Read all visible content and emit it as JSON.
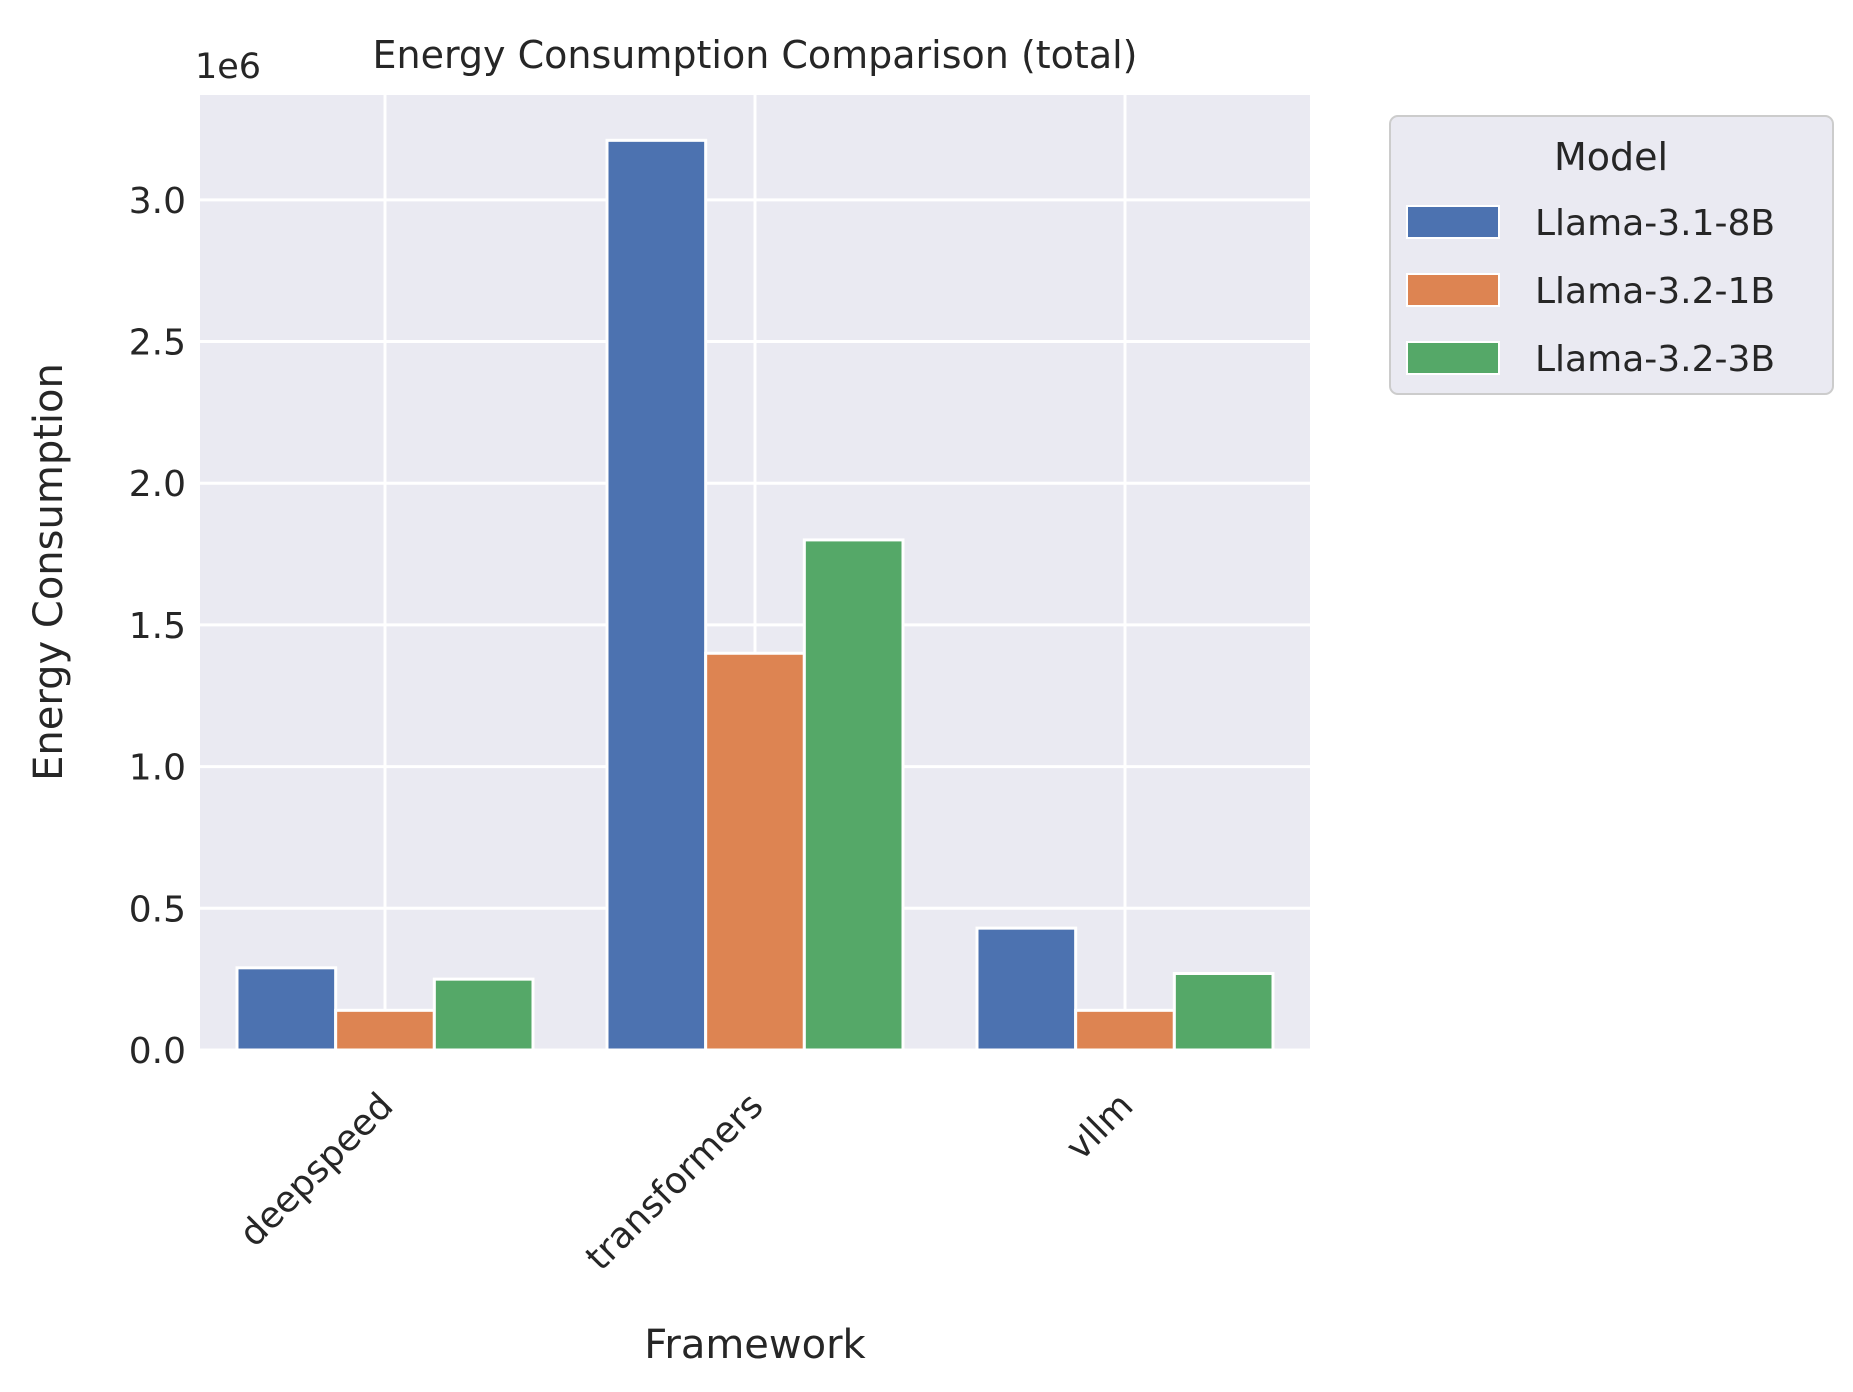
{
  "chart_data": {
    "type": "bar",
    "title": "Energy Consumption Comparison (total)",
    "xlabel": "Framework",
    "ylabel": "Energy Consumption",
    "y_offset_label": "1e6",
    "categories": [
      "deepspeed",
      "transformers",
      "vllm"
    ],
    "series": [
      {
        "name": "Llama-3.1-8B",
        "color": "#4c72b0",
        "values": [
          0.29,
          3.21,
          0.43
        ]
      },
      {
        "name": "Llama-3.2-1B",
        "color": "#dd8452",
        "values": [
          0.14,
          1.4,
          0.14
        ]
      },
      {
        "name": "Llama-3.2-3B",
        "color": "#55a868",
        "values": [
          0.25,
          1.8,
          0.27
        ]
      }
    ],
    "ylim": [
      0,
      3.37
    ],
    "yticks": [
      0.0,
      0.5,
      1.0,
      1.5,
      2.0,
      2.5,
      3.0
    ],
    "ytick_labels": [
      "0.0",
      "0.5",
      "1.0",
      "1.5",
      "2.0",
      "2.5",
      "3.0"
    ],
    "grid": true,
    "background": "#eaeaf2",
    "legend": {
      "title": "Model",
      "placement": "outside-top-right"
    }
  }
}
